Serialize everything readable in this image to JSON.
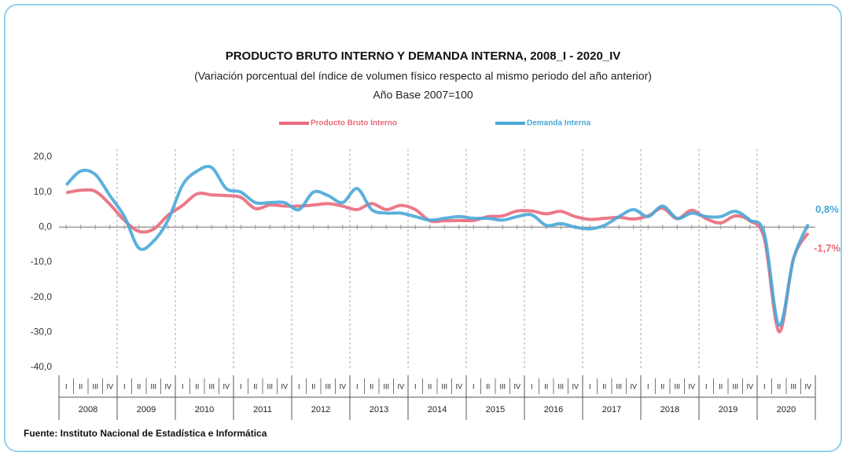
{
  "chart_data": {
    "type": "line",
    "title": "PRODUCTO BRUTO INTERNO Y DEMANDA INTERNA, 2008_I - 2020_IV",
    "subtitle": "(Variación porcentual del índice de volumen físico respecto al mismo periodo del año anterior)",
    "note": "Año Base 2007=100",
    "categories": [
      "I",
      "II",
      "III",
      "IV",
      "I",
      "II",
      "III",
      "IV",
      "I",
      "II",
      "III",
      "IV",
      "I",
      "II",
      "III",
      "IV",
      "I",
      "II",
      "III",
      "IV",
      "I",
      "II",
      "III",
      "IV",
      "I",
      "II",
      "III",
      "IV",
      "I",
      "II",
      "III",
      "IV",
      "I",
      "II",
      "III",
      "IV",
      "I",
      "II",
      "III",
      "IV",
      "I",
      "II",
      "III",
      "IV",
      "I",
      "II",
      "III",
      "IV",
      "I",
      "II",
      "III",
      "IV"
    ],
    "years": [
      "2008",
      "2009",
      "2010",
      "2011",
      "2012",
      "2013",
      "2014",
      "2015",
      "2016",
      "2017",
      "2018",
      "2019",
      "2020"
    ],
    "series": [
      {
        "name": "Producto Bruto Interno",
        "color": "#ea6a7c",
        "values": [
          9.8,
          10.5,
          10.2,
          6.5,
          1.9,
          -1.2,
          -0.6,
          3.4,
          6.2,
          9.5,
          9.2,
          9.0,
          8.5,
          5.3,
          6.3,
          6.0,
          6.0,
          6.3,
          6.7,
          6.0,
          5.0,
          6.7,
          5.0,
          6.2,
          5.0,
          1.8,
          1.8,
          1.9,
          1.9,
          3.0,
          3.2,
          4.6,
          4.6,
          3.8,
          4.5,
          3.0,
          2.2,
          2.5,
          2.8,
          2.3,
          3.2,
          5.4,
          2.4,
          4.8,
          2.4,
          1.2,
          3.2,
          1.8,
          -3.4,
          -29.8,
          -9.0,
          -1.7
        ]
      },
      {
        "name": "Demanda Interna",
        "color": "#4aa8d8",
        "values": [
          12,
          16,
          15,
          9,
          3,
          -6,
          -4,
          2,
          12,
          16,
          17,
          11,
          10,
          7,
          7,
          7,
          5,
          10,
          9,
          7,
          11,
          5,
          4,
          4,
          3,
          2,
          2.5,
          3,
          2.5,
          2.5,
          2,
          3,
          3.5,
          0.5,
          1,
          0,
          -0.5,
          0.5,
          3,
          5,
          3,
          6,
          2.5,
          4,
          3,
          3,
          4.5,
          2,
          -2,
          -28,
          -9,
          0.8
        ]
      }
    ],
    "annotations": [
      {
        "label": "0,8%",
        "value": 0.8,
        "series": 1
      },
      {
        "label": "-1,7%",
        "value": -1.7,
        "series": 0
      }
    ],
    "ylim": [
      -40,
      20
    ],
    "yticks": [
      {
        "value": 20,
        "label": "20,0"
      },
      {
        "value": 10,
        "label": "10,0"
      },
      {
        "value": 0,
        "label": "0,0"
      },
      {
        "value": -10,
        "label": "-10,0"
      },
      {
        "value": -20,
        "label": "-20,0"
      },
      {
        "value": -30,
        "label": "-30,0"
      },
      {
        "value": -40,
        "label": "-40,0"
      }
    ],
    "legend": "top",
    "source": "Fuente: Instituto Nacional de Estadística e Informática"
  }
}
